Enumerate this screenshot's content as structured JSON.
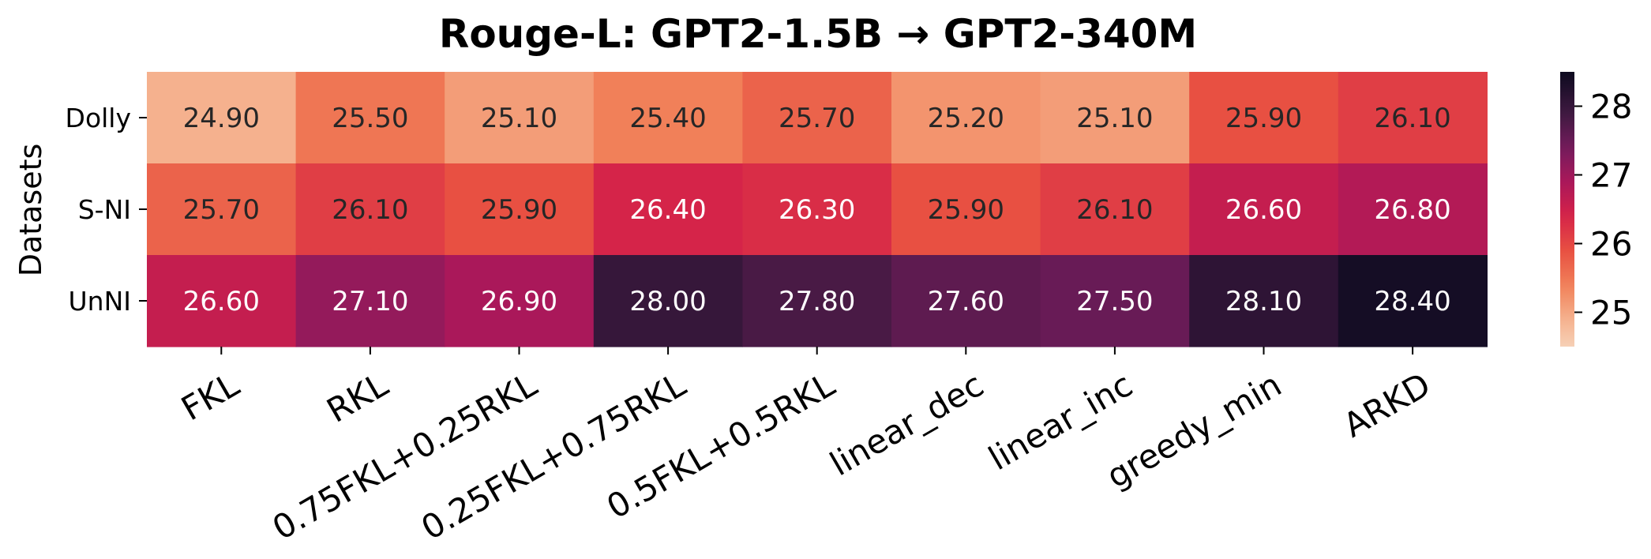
{
  "chart_data": {
    "type": "heatmap",
    "title": "Rouge-L: GPT2-1.5B → GPT2-340M",
    "xlabel": "",
    "ylabel": "Datasets",
    "rows": [
      "Dolly",
      "S-NI",
      "UnNI"
    ],
    "columns": [
      "FKL",
      "RKL",
      "0.75FKL+0.25RKL",
      "0.25FKL+0.75RKL",
      "0.5FKL+0.5RKL",
      "linear_dec",
      "linear_inc",
      "greedy_min",
      "ARKD"
    ],
    "values": [
      [
        24.9,
        25.5,
        25.1,
        25.4,
        25.7,
        25.2,
        25.1,
        25.9,
        26.1
      ],
      [
        25.7,
        26.1,
        25.9,
        26.4,
        26.3,
        25.9,
        26.1,
        26.6,
        26.8
      ],
      [
        26.6,
        27.1,
        26.9,
        28.0,
        27.8,
        27.6,
        27.5,
        28.1,
        28.4
      ]
    ],
    "value_labels": [
      [
        "24.90",
        "25.50",
        "25.10",
        "25.40",
        "25.70",
        "25.20",
        "25.10",
        "25.90",
        "26.10"
      ],
      [
        "25.70",
        "26.10",
        "25.90",
        "26.40",
        "26.30",
        "25.90",
        "26.10",
        "26.60",
        "26.80"
      ],
      [
        "26.60",
        "27.10",
        "26.90",
        "28.00",
        "27.80",
        "27.60",
        "27.50",
        "28.10",
        "28.40"
      ]
    ],
    "colormap": "rocket_r",
    "colorbar": {
      "range": [
        24.5,
        28.5
      ],
      "ticks": [
        25,
        26,
        27,
        28
      ],
      "tick_labels": [
        "25",
        "26",
        "27",
        "28"
      ]
    },
    "colors": {
      "low": "#f6cdb1",
      "high": "#0d0a1f",
      "light_text": "#ffffff",
      "dark_text": "#262626"
    }
  }
}
